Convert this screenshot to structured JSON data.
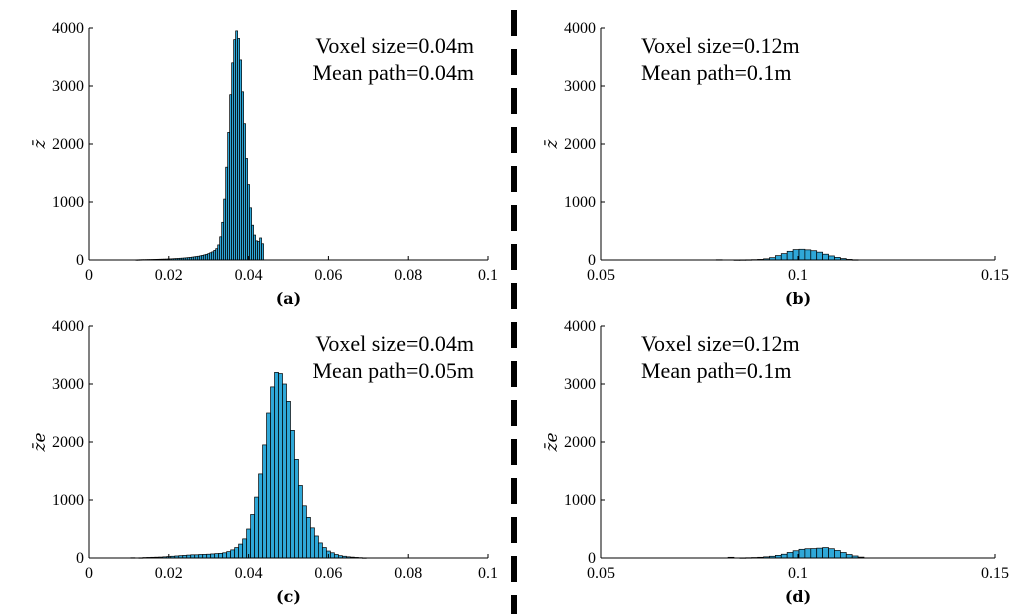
{
  "chart_data": [
    {
      "panel": "(a)",
      "type": "bar",
      "ylabel": "z̄",
      "xlim": [
        0,
        0.1
      ],
      "ylim": [
        0,
        4000
      ],
      "xticks": [
        0,
        0.02,
        0.04,
        0.06,
        0.08,
        0.1
      ],
      "xtick_labels": [
        "0",
        "0.02",
        "0.04",
        "0.06",
        "0.08",
        "0.1"
      ],
      "yticks": [
        0,
        1000,
        2000,
        3000,
        4000
      ],
      "annotations": [
        "Voxel size=0.04m",
        "Mean path=0.04m"
      ],
      "annotation_align": "right",
      "bin_width": 0.0005,
      "x": [
        0.012,
        0.0125,
        0.013,
        0.0135,
        0.014,
        0.0145,
        0.015,
        0.0155,
        0.016,
        0.0165,
        0.017,
        0.0175,
        0.018,
        0.0185,
        0.019,
        0.0195,
        0.02,
        0.0205,
        0.021,
        0.0215,
        0.022,
        0.0225,
        0.023,
        0.0235,
        0.024,
        0.0245,
        0.025,
        0.0255,
        0.026,
        0.0265,
        0.027,
        0.0275,
        0.028,
        0.0285,
        0.029,
        0.0295,
        0.03,
        0.0305,
        0.031,
        0.0315,
        0.032,
        0.0325,
        0.033,
        0.0335,
        0.034,
        0.0345,
        0.035,
        0.0355,
        0.036,
        0.0365,
        0.037,
        0.0375,
        0.038,
        0.0385,
        0.039,
        0.0395,
        0.04,
        0.0405,
        0.041,
        0.0415,
        0.042,
        0.0425,
        0.043,
        0.0435,
        0.044
      ],
      "values": [
        3,
        4,
        5,
        6,
        6,
        7,
        8,
        8,
        9,
        10,
        11,
        12,
        13,
        14,
        15,
        16,
        18,
        19,
        21,
        23,
        25,
        27,
        30,
        32,
        35,
        38,
        42,
        45,
        50,
        55,
        60,
        65,
        72,
        80,
        88,
        98,
        110,
        125,
        140,
        165,
        195,
        260,
        400,
        650,
        1050,
        1600,
        2200,
        2850,
        3400,
        3800,
        3950,
        3820,
        3450,
        2900,
        2350,
        1750,
        1300,
        900,
        600,
        430,
        330,
        320,
        380,
        280,
        0
      ]
    },
    {
      "panel": "(b)",
      "type": "bar",
      "ylabel": "z̄",
      "xlim": [
        0.05,
        0.15
      ],
      "ylim": [
        0,
        4000
      ],
      "xticks": [
        0.05,
        0.1,
        0.15
      ],
      "xtick_labels": [
        "0.05",
        "0.1",
        "0.15"
      ],
      "yticks": [
        0,
        1000,
        2000,
        3000,
        4000
      ],
      "annotations": [
        "Voxel size=0.12m",
        "Mean path=0.1m"
      ],
      "annotation_align": "left",
      "bin_width": 0.0015,
      "x": [
        0.08,
        0.0815,
        0.083,
        0.0845,
        0.086,
        0.0875,
        0.089,
        0.0905,
        0.092,
        0.0935,
        0.095,
        0.0965,
        0.098,
        0.0995,
        0.101,
        0.1025,
        0.104,
        0.1055,
        0.107,
        0.1085,
        0.11,
        0.1115,
        0.113,
        0.1145
      ],
      "values": [
        5,
        0,
        0,
        2,
        3,
        4,
        6,
        10,
        20,
        40,
        75,
        110,
        150,
        180,
        185,
        175,
        160,
        135,
        100,
        70,
        45,
        25,
        10,
        4
      ]
    },
    {
      "panel": "(c)",
      "type": "bar",
      "ylabel": "z̄e",
      "xlim": [
        0,
        0.1
      ],
      "ylim": [
        0,
        4000
      ],
      "xticks": [
        0,
        0.02,
        0.04,
        0.06,
        0.08,
        0.1
      ],
      "xtick_labels": [
        "0",
        "0.02",
        "0.04",
        "0.06",
        "0.08",
        "0.1"
      ],
      "yticks": [
        0,
        1000,
        2000,
        3000,
        4000
      ],
      "annotations": [
        "Voxel size=0.04m",
        "Mean path=0.05m"
      ],
      "annotation_align": "right",
      "bin_width": 0.001,
      "x": [
        0.011,
        0.012,
        0.013,
        0.014,
        0.015,
        0.016,
        0.017,
        0.018,
        0.019,
        0.02,
        0.021,
        0.022,
        0.023,
        0.024,
        0.025,
        0.026,
        0.027,
        0.028,
        0.029,
        0.03,
        0.031,
        0.032,
        0.033,
        0.034,
        0.035,
        0.036,
        0.037,
        0.038,
        0.039,
        0.04,
        0.041,
        0.042,
        0.043,
        0.044,
        0.045,
        0.046,
        0.047,
        0.048,
        0.049,
        0.05,
        0.051,
        0.052,
        0.053,
        0.054,
        0.055,
        0.056,
        0.057,
        0.058,
        0.059,
        0.06,
        0.061,
        0.062,
        0.063,
        0.064,
        0.065,
        0.066,
        0.067,
        0.068,
        0.069,
        0.07
      ],
      "values": [
        5,
        0,
        4,
        8,
        10,
        12,
        14,
        16,
        20,
        25,
        30,
        35,
        40,
        45,
        50,
        55,
        55,
        60,
        62,
        65,
        70,
        75,
        80,
        90,
        110,
        140,
        180,
        240,
        330,
        500,
        750,
        1050,
        1450,
        1950,
        2500,
        2950,
        3200,
        3180,
        3000,
        2700,
        2200,
        1700,
        1250,
        900,
        700,
        520,
        380,
        260,
        180,
        120,
        90,
        60,
        40,
        30,
        20,
        15,
        10,
        6,
        3,
        0
      ]
    },
    {
      "panel": "(d)",
      "type": "bar",
      "ylabel": "z̄e",
      "xlim": [
        0.05,
        0.15
      ],
      "ylim": [
        0,
        4000
      ],
      "xticks": [
        0.05,
        0.1,
        0.15
      ],
      "xtick_labels": [
        "0.05",
        "0.1",
        "0.15"
      ],
      "yticks": [
        0,
        1000,
        2000,
        3000,
        4000
      ],
      "annotations": [
        "Voxel size=0.12m",
        "Mean path=0.1m"
      ],
      "annotation_align": "left",
      "bin_width": 0.0015,
      "x": [
        0.083,
        0.0845,
        0.086,
        0.0875,
        0.089,
        0.0905,
        0.092,
        0.0935,
        0.095,
        0.0965,
        0.098,
        0.0995,
        0.101,
        0.1025,
        0.104,
        0.1055,
        0.107,
        0.1085,
        0.11,
        0.1115,
        0.113,
        0.1145,
        0.116
      ],
      "values": [
        12,
        0,
        3,
        5,
        8,
        12,
        20,
        30,
        45,
        65,
        95,
        125,
        150,
        160,
        162,
        170,
        180,
        160,
        130,
        95,
        60,
        35,
        15
      ]
    }
  ],
  "divider": {
    "style": "dashed",
    "color": "#000000"
  },
  "colors": {
    "bar_fill": "#2fa8d8",
    "bar_stroke": "#000000",
    "axis": "#000000"
  }
}
